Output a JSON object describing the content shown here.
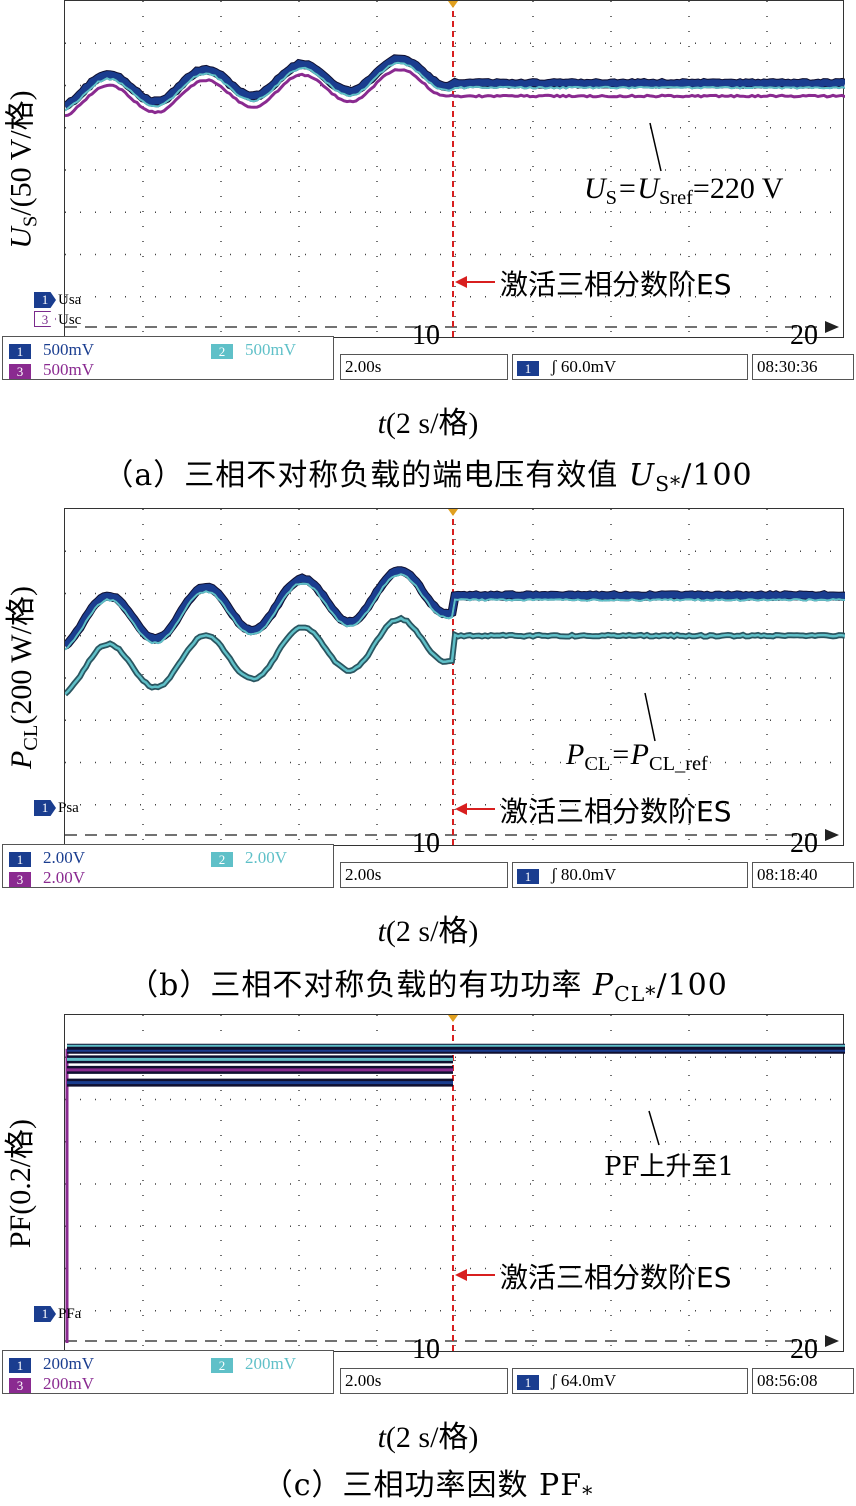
{
  "colors": {
    "ch1": "#1a3d8f",
    "ch2": "#5fc0c8",
    "ch3": "#8a2a90",
    "trigger": "#d81f1f",
    "grid": "#333333"
  },
  "panels": [
    {
      "id": "a",
      "ylabel_main": "U",
      "ylabel_sub": "S",
      "ylabel_rest": "/(50 V/格)",
      "channel_labels": [
        "Usa",
        "Usc"
      ],
      "channel_label_nums": [
        "1",
        "3"
      ],
      "annotation_prefix": "U",
      "annotation_sub1": "S",
      "annotation_mid": "=U",
      "annotation_sub2": "Sref",
      "annotation_rest": "=220 V",
      "activate_text": "激活三相分数阶ES",
      "tick_10": "10",
      "tick_20": "20",
      "scales": {
        "ch1": "500mV",
        "ch2": "500mV",
        "ch3": "500mV"
      },
      "timebase": "2.00s",
      "trigger": "60.0mV",
      "time": "08:30:36",
      "xlabel": "t(2 s/格)",
      "caption_prefix": "（a）三相不对称负载的端电压有效值 ",
      "caption_sym": "U",
      "caption_sub": "S*",
      "caption_suffix": "/100"
    },
    {
      "id": "b",
      "ylabel_main": "P",
      "ylabel_sub": "CL",
      "ylabel_rest": "(200 W/格)",
      "channel_labels": [
        "Psa"
      ],
      "channel_label_nums": [
        "1"
      ],
      "annotation_prefix": "P",
      "annotation_sub1": "CL",
      "annotation_mid": "=P",
      "annotation_sub2": "CL_ref",
      "annotation_rest": "",
      "activate_text": "激活三相分数阶ES",
      "tick_10": "10",
      "tick_20": "20",
      "scales": {
        "ch1": "2.00V",
        "ch2": "2.00V",
        "ch3": "2.00V"
      },
      "timebase": "2.00s",
      "trigger": "80.0mV",
      "time": "08:18:40",
      "xlabel": "t(2 s/格)",
      "caption_prefix": "（b）三相不对称负载的有功功率 ",
      "caption_sym": "P",
      "caption_sub": "CL*",
      "caption_suffix": "/100"
    },
    {
      "id": "c",
      "ylabel_main": "PF",
      "ylabel_sub": "",
      "ylabel_rest": "(0.2/格)",
      "channel_labels": [
        "PFa"
      ],
      "channel_label_nums": [
        "1"
      ],
      "annotation_prefix": "PF上升至1",
      "annotation_sub1": "",
      "annotation_mid": "",
      "annotation_sub2": "",
      "annotation_rest": "",
      "activate_text": "激活三相分数阶ES",
      "tick_10": "10",
      "tick_20": "20",
      "scales": {
        "ch1": "200mV",
        "ch2": "200mV",
        "ch3": "200mV"
      },
      "timebase": "2.00s",
      "trigger": "64.0mV",
      "time": "08:56:08",
      "xlabel": "t(2 s/格)",
      "caption_prefix": "（c）三相功率因数 PF",
      "caption_sym": "",
      "caption_sub": "*",
      "caption_suffix": ""
    }
  ],
  "chart_data": [
    {
      "type": "line",
      "title": "（a）三相不对称负载的端电压有效值 US*/100",
      "xlabel": "t(2 s/格)",
      "ylabel": "US/(50 V/格)",
      "x_divisions": 10,
      "y_divisions": 8,
      "trigger_division": 5,
      "grid": true,
      "series": [
        {
          "name": "Usa",
          "before_level_div": 5.8,
          "after_level_div": 6.0
        },
        {
          "name": "Usc",
          "before_level_div": 5.55,
          "after_level_div": 5.75
        }
      ]
    },
    {
      "type": "line",
      "title": "（b）三相不对称负载的有功功率 PCL*/100",
      "xlabel": "t(2 s/格)",
      "ylabel": "PCL(200 W/格)",
      "x_divisions": 10,
      "y_divisions": 8,
      "trigger_division": 5,
      "grid": true,
      "series": [
        {
          "name": "Psa",
          "before_level_div": 5.3,
          "after_level_div": 5.9
        }
      ]
    },
    {
      "type": "line",
      "title": "（c）三相功率因数 PF*",
      "xlabel": "t(2 s/格)",
      "ylabel": "PF(0.2/格)",
      "x_divisions": 10,
      "y_divisions": 8,
      "trigger_division": 5,
      "grid": true,
      "series": [
        {
          "name": "PFa",
          "before_level_div": 6.0,
          "after_level_div": 7.2
        }
      ]
    }
  ]
}
